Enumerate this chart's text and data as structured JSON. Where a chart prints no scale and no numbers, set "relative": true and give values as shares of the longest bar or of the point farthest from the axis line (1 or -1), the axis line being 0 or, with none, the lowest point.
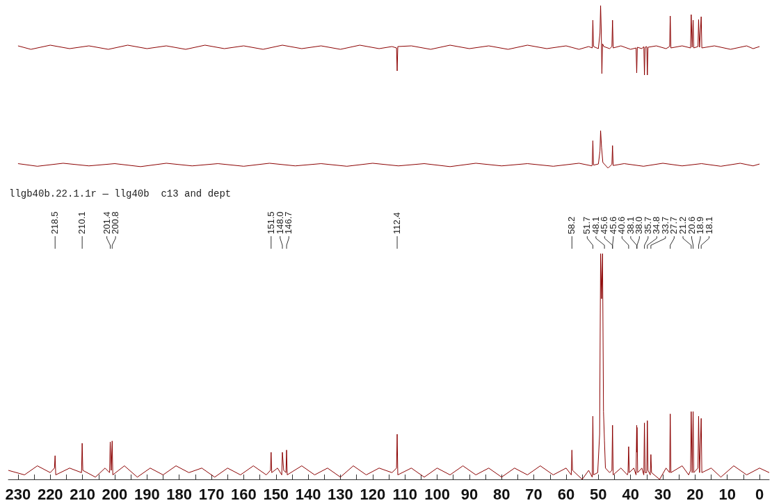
{
  "chart_data": [
    {
      "type": "line",
      "relative": true,
      "color": "#8b0000",
      "marker": "none",
      "xlim": [
        230,
        0
      ],
      "tick_labels": false,
      "xticks": [
        230,
        220,
        210,
        200,
        190,
        180,
        170,
        160,
        150,
        140,
        130,
        120,
        110,
        100,
        90,
        80,
        70,
        60,
        50,
        40,
        30,
        20,
        10,
        0
      ],
      "x": [
        230,
        226,
        220,
        214,
        208,
        202,
        196,
        190,
        184,
        178,
        172,
        166,
        160,
        154,
        148,
        142,
        136,
        130,
        124,
        118,
        114,
        112.6,
        112.4,
        112.2,
        108,
        102,
        96,
        90,
        84,
        78,
        72,
        66,
        60,
        56,
        53,
        51.9,
        51.7,
        51.5,
        50,
        49.5,
        49.3,
        49.1,
        48.9,
        48.7,
        48.3,
        46.5,
        45.8,
        45.6,
        45.4,
        43,
        40,
        38.3,
        38.1,
        37.9,
        36.5,
        35.9,
        35.7,
        35.5,
        35.0,
        34.8,
        34.6,
        32,
        29,
        27.9,
        27.7,
        27.5,
        24,
        21.4,
        21.2,
        20.9,
        20.6,
        20.4,
        19.1,
        18.9,
        18.6,
        18.1,
        17.9,
        14,
        9,
        4,
        2,
        0
      ],
      "values": [
        0.42,
        0.37,
        0.43,
        0.38,
        0.42,
        0.37,
        0.43,
        0.38,
        0.42,
        0.37,
        0.43,
        0.38,
        0.42,
        0.37,
        0.43,
        0.38,
        0.42,
        0.37,
        0.43,
        0.38,
        0.41,
        0.39,
        0.06,
        0.41,
        0.42,
        0.37,
        0.43,
        0.38,
        0.42,
        0.37,
        0.43,
        0.38,
        0.42,
        0.37,
        0.41,
        0.39,
        0.79,
        0.41,
        0.38,
        0.6,
        1,
        0.65,
        0.02,
        0.45,
        0.41,
        0.38,
        0.41,
        0.79,
        0.39,
        0.42,
        0.37,
        0.39,
        0.03,
        0.4,
        0.38,
        0.41,
        0,
        0.4,
        0.41,
        0,
        0.4,
        0.42,
        0.38,
        0.41,
        0.85,
        0.39,
        0.42,
        0.39,
        0.87,
        0.4,
        0.79,
        0.39,
        0.41,
        0.8,
        0.4,
        0.84,
        0.39,
        0.42,
        0.37,
        0.42,
        0.38,
        0.41
      ]
    },
    {
      "type": "line",
      "relative": true,
      "color": "#8b0000",
      "marker": "none",
      "xlim": [
        230,
        0
      ],
      "tick_labels": false,
      "xticks": [
        230,
        220,
        210,
        200,
        190,
        180,
        170,
        160,
        150,
        140,
        130,
        120,
        110,
        100,
        90,
        80,
        70,
        60,
        50,
        40,
        30,
        20,
        10,
        0
      ],
      "x": [
        230,
        224,
        216,
        208,
        200,
        192,
        184,
        176,
        168,
        160,
        152,
        144,
        136,
        128,
        120,
        112,
        104,
        96,
        88,
        80,
        72,
        64,
        56,
        52,
        51.9,
        51.7,
        51.5,
        50,
        49.5,
        49.3,
        49.0,
        48.6,
        47,
        45.8,
        45.6,
        45.4,
        42,
        36,
        30,
        24,
        18,
        12,
        6,
        2,
        0
      ],
      "values": [
        0.12,
        0.05,
        0.13,
        0.06,
        0.12,
        0.04,
        0.13,
        0.06,
        0.12,
        0.05,
        0.13,
        0.06,
        0.12,
        0.05,
        0.13,
        0.06,
        0.12,
        0.04,
        0.13,
        0.06,
        0.12,
        0.05,
        0.13,
        0.06,
        0.09,
        0.73,
        0.08,
        0.11,
        0.45,
        1,
        0.55,
        0.15,
        0,
        0.1,
        0.6,
        0.07,
        0.12,
        0.05,
        0.13,
        0.06,
        0.12,
        0.05,
        0.13,
        0.06,
        0.11
      ]
    },
    {
      "type": "line",
      "relative": true,
      "color": "#8b0000",
      "marker": "none",
      "xlim": [
        233,
        -3
      ],
      "title": "llgb40b.22.1.1r — llg40b  c13 and dept",
      "xticks": [
        230,
        {
          "value": 225,
          "label": null
        },
        220,
        {
          "value": 215,
          "label": null
        },
        210,
        {
          "value": 205,
          "label": null
        },
        200,
        {
          "value": 195,
          "label": null
        },
        190,
        {
          "value": 185,
          "label": null
        },
        180,
        {
          "value": 175,
          "label": null
        },
        170,
        {
          "value": 165,
          "label": null
        },
        160,
        {
          "value": 155,
          "label": null
        },
        150,
        {
          "value": 145,
          "label": null
        },
        140,
        {
          "value": 135,
          "label": null
        },
        130,
        {
          "value": 125,
          "label": null
        },
        120,
        {
          "value": 115,
          "label": null
        },
        110,
        {
          "value": 105,
          "label": null
        },
        100,
        {
          "value": 95,
          "label": null
        },
        90,
        {
          "value": 85,
          "label": null
        },
        80,
        {
          "value": 75,
          "label": null
        },
        70,
        {
          "value": 65,
          "label": null
        },
        60,
        {
          "value": 55,
          "label": null
        },
        50,
        {
          "value": 45,
          "label": null
        },
        40,
        {
          "value": 35,
          "label": null
        },
        30,
        {
          "value": 25,
          "label": null
        },
        20,
        {
          "value": 15,
          "label": null
        },
        10,
        {
          "value": 5,
          "label": null
        },
        0
      ],
      "annotations": [
        {
          "text": "218.5",
          "x": 218.5
        },
        {
          "text": "210.1",
          "x": 210.1
        },
        {
          "text": "201.4",
          "x": 201.4
        },
        {
          "text": "200.8",
          "x": 200.8
        },
        {
          "text": "151.5",
          "x": 151.5
        },
        {
          "text": "148.0",
          "x": 148.0
        },
        {
          "text": "146.7",
          "x": 146.7
        },
        {
          "text": "112.4",
          "x": 112.4
        },
        {
          "text": "58.2",
          "x": 58.2
        },
        {
          "text": "51.7",
          "x": 51.7
        },
        {
          "text": "48.1",
          "x": 48.1
        },
        {
          "text": "45.6",
          "x": 45.6
        },
        {
          "text": "45.6",
          "x": 45.6
        },
        {
          "text": "40.6",
          "x": 40.6
        },
        {
          "text": "38.1",
          "x": 38.1
        },
        {
          "text": "38.0",
          "x": 38.0
        },
        {
          "text": "35.7",
          "x": 35.7
        },
        {
          "text": "34.8",
          "x": 34.8
        },
        {
          "text": "33.7",
          "x": 33.7
        },
        {
          "text": "27.7",
          "x": 27.7
        },
        {
          "text": "21.2",
          "x": 21.2
        },
        {
          "text": "20.6",
          "x": 20.6
        },
        {
          "text": "18.9",
          "x": 18.9
        },
        {
          "text": "18.1",
          "x": 18.1
        }
      ],
      "x": [
        233,
        228,
        224,
        220,
        218.7,
        218.5,
        218.3,
        214,
        210.3,
        210.1,
        209.9,
        206,
        203,
        201.6,
        201.4,
        201.1,
        200.8,
        200.6,
        197,
        193,
        189,
        185,
        181,
        177,
        173,
        169,
        165,
        161,
        157,
        153,
        151.7,
        151.5,
        151.3,
        149.5,
        148.2,
        148.0,
        147.6,
        146.9,
        146.7,
        146.5,
        142,
        138,
        134,
        130,
        126,
        122,
        118,
        114,
        112.6,
        112.4,
        112.2,
        108,
        104,
        100,
        96,
        92,
        88,
        84,
        80,
        76,
        72,
        68,
        64,
        60,
        58.4,
        58.2,
        58.0,
        55,
        53,
        51.9,
        51.7,
        51.5,
        50.2,
        49.6,
        49.3,
        49.0,
        48.7,
        48.4,
        48.1,
        47.8,
        46.5,
        45.8,
        45.6,
        45.4,
        43,
        41,
        40.8,
        40.6,
        40.4,
        39,
        38.3,
        38.1,
        38.05,
        38.0,
        37.8,
        36.5,
        35.9,
        35.7,
        35.5,
        35.0,
        34.8,
        34.6,
        33.9,
        33.7,
        33.5,
        31,
        29,
        27.9,
        27.7,
        27.5,
        24,
        22,
        21.4,
        21.2,
        20.9,
        20.6,
        20.4,
        19.1,
        18.9,
        18.6,
        18.1,
        17.9,
        15,
        12,
        8,
        4,
        0,
        -3
      ],
      "values": [
        0.04,
        0.02,
        0.06,
        0.03,
        0.05,
        0.105,
        0.02,
        0.05,
        0.03,
        0.16,
        0.04,
        0.01,
        0.05,
        0.03,
        0.166,
        0.04,
        0.17,
        0.02,
        0.06,
        0.01,
        0.05,
        0.02,
        0.06,
        0.03,
        0.05,
        0.01,
        0.05,
        0.02,
        0.06,
        0.02,
        0.04,
        0.12,
        0.03,
        0.05,
        0.02,
        0.12,
        0.04,
        0.03,
        0.13,
        0.02,
        0.06,
        0.02,
        0.05,
        0.01,
        0.06,
        0.02,
        0.05,
        0.03,
        0.05,
        0.2,
        0.02,
        0.05,
        0.01,
        0.05,
        0.02,
        0.06,
        0.02,
        0.05,
        0.01,
        0.05,
        0.02,
        0.06,
        0.02,
        0.05,
        0.02,
        0.13,
        0.04,
        0,
        0.04,
        0.01,
        0.28,
        0.02,
        0.03,
        0.2,
        1,
        0.8,
        1,
        0.3,
        0.17,
        0.05,
        0.03,
        0.04,
        0.24,
        0.02,
        0.05,
        0.02,
        0.03,
        0.145,
        0.03,
        0.05,
        0.02,
        0.24,
        0.12,
        0.23,
        0.03,
        0.05,
        0.02,
        0.25,
        0.03,
        0.03,
        0.26,
        0.04,
        0.02,
        0.11,
        0.03,
        0,
        0.05,
        0.03,
        0.29,
        0.03,
        0.06,
        0.02,
        0.04,
        0.3,
        0.03,
        0.3,
        0.03,
        0.05,
        0.28,
        0.03,
        0.27,
        0.03,
        0.05,
        0.01,
        0.06,
        0.02,
        0.05,
        0.03
      ]
    }
  ]
}
